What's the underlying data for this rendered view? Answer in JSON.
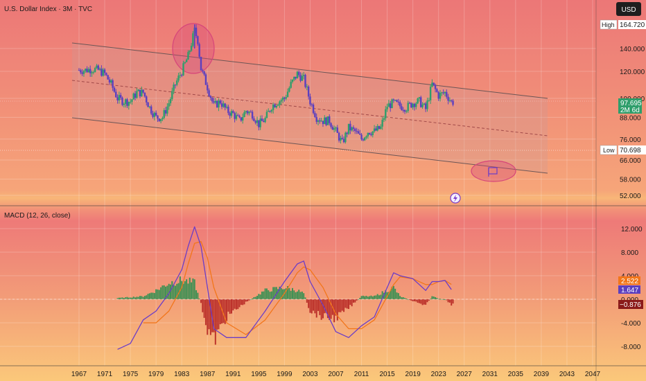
{
  "chart_title": "U.S. Dollar Index · 3M · TVC",
  "currency_button": "USD",
  "price_axis": {
    "ticks": [
      "140.000",
      "120.000",
      "100.000",
      "88.000",
      "76.000",
      "66.000",
      "58.000",
      "52.000"
    ],
    "high_label": "High",
    "high_value": "164.720",
    "low_label": "Low",
    "low_value": "70.698",
    "last_price": "97.695",
    "countdown": "2M 6d"
  },
  "macd": {
    "title": "MACD (12, 26, close)",
    "ticks": [
      "12.000",
      "8.000",
      "4.000",
      "0.000",
      "-4.000",
      "-8.000"
    ],
    "value_signal": "2.522",
    "value_macd": "1.647",
    "value_hist": "−0.876"
  },
  "time_axis": [
    "1967",
    "1971",
    "1975",
    "1979",
    "1983",
    "1987",
    "1991",
    "1995",
    "1999",
    "2003",
    "2007",
    "2011",
    "2015",
    "2019",
    "2023",
    "2027",
    "2031",
    "2035",
    "2039",
    "2043",
    "2047"
  ],
  "colors": {
    "up": "#2e9e6b",
    "down": "#5b3fbf",
    "macd_line": "#6a3cc8",
    "signal_line": "#f2761a",
    "hist_pos": "#1f8f4e",
    "hist_neg": "#b21d1d",
    "channel": "#6b5555",
    "ellipse": "#d6457a"
  },
  "chart_data": [
    {
      "type": "candlestick",
      "title": "U.S. Dollar Index · 3M · TVC",
      "y_scale": "log",
      "ylim": [
        48,
        170
      ],
      "xlim": [
        1964,
        2049
      ],
      "series": [
        {
          "points": [
            [
              1967,
              121
            ],
            [
              1968,
              121
            ],
            [
              1969,
              122
            ],
            [
              1970,
              121
            ],
            [
              1971,
              118
            ],
            [
              1972,
              110
            ],
            [
              1973,
              100
            ],
            [
              1974,
              98
            ],
            [
              1975,
              98
            ],
            [
              1976,
              104
            ],
            [
              1977,
              104
            ],
            [
              1978,
              94
            ],
            [
              1979,
              88
            ],
            [
              1980,
              88
            ],
            [
              1981,
              97
            ],
            [
              1982,
              110
            ],
            [
              1983,
              120
            ],
            [
              1984,
              133
            ],
            [
              1985,
              158
            ],
            [
              1985.5,
              148
            ],
            [
              1986,
              122
            ],
            [
              1987,
              108
            ],
            [
              1988,
              95
            ],
            [
              1989,
              98
            ],
            [
              1990,
              92
            ],
            [
              1991,
              90
            ],
            [
              1992,
              86
            ],
            [
              1993,
              92
            ],
            [
              1994,
              90
            ],
            [
              1995,
              84
            ],
            [
              1996,
              87
            ],
            [
              1997,
              95
            ],
            [
              1998,
              98
            ],
            [
              1999,
              100
            ],
            [
              2000,
              110
            ],
            [
              2001,
              118
            ],
            [
              2002,
              114
            ],
            [
              2003,
              98
            ],
            [
              2004,
              88
            ],
            [
              2005,
              86
            ],
            [
              2006,
              86
            ],
            [
              2007,
              80
            ],
            [
              2008,
              74
            ],
            [
              2009,
              82
            ],
            [
              2010,
              80
            ],
            [
              2011,
              76
            ],
            [
              2012,
              80
            ],
            [
              2013,
              80
            ],
            [
              2014,
              82
            ],
            [
              2015,
              95
            ],
            [
              2016,
              97
            ],
            [
              2017,
              95
            ],
            [
              2018,
              94
            ],
            [
              2019,
              97
            ],
            [
              2020,
              98
            ],
            [
              2021,
              93
            ],
            [
              2022,
              110
            ],
            [
              2023,
              102
            ],
            [
              2024,
              104
            ],
            [
              2025,
              97.695
            ]
          ]
        }
      ],
      "high": 164.72,
      "low": 70.698,
      "last": 97.695
    },
    {
      "type": "line",
      "title": "MACD (12, 26, close)",
      "ylim": [
        -10,
        14
      ],
      "series": [
        {
          "name": "MACD",
          "x": [
            1973,
            1975,
            1977,
            1979,
            1981,
            1983,
            1984,
            1985,
            1986,
            1987,
            1988,
            1990,
            1993,
            1996,
            1999,
            2001,
            2002,
            2003,
            2005,
            2007,
            2009,
            2011,
            2013,
            2015,
            2016,
            2017,
            2019,
            2021,
            2022,
            2023,
            2024,
            2025
          ],
          "values": [
            -8.5,
            -7.5,
            -3.5,
            -2,
            1,
            5,
            9,
            12.3,
            9,
            2,
            -5,
            -6.5,
            -6.5,
            -2,
            3,
            6,
            6.5,
            3,
            -1,
            -5.5,
            -6.5,
            -4.5,
            -3,
            2,
            4.5,
            4,
            3.5,
            1.5,
            3,
            3,
            3.2,
            1.647
          ]
        },
        {
          "name": "Signal",
          "x": [
            1977,
            1979,
            1981,
            1983,
            1984,
            1985,
            1986,
            1987,
            1988,
            1990,
            1993,
            1996,
            1999,
            2001,
            2002,
            2003,
            2005,
            2007,
            2009,
            2011,
            2013,
            2015,
            2016,
            2017,
            2019,
            2021,
            2022,
            2023,
            2024,
            2025
          ],
          "values": [
            -4,
            -4,
            -2,
            2,
            6,
            9.5,
            9.8,
            7,
            2,
            -4,
            -6,
            -3.5,
            1,
            4.5,
            5.5,
            5,
            2,
            -2.5,
            -5,
            -5,
            -3.5,
            0.5,
            2.5,
            3.8,
            3.5,
            2.5,
            2.5,
            3,
            3.2,
            2.522
          ]
        },
        {
          "name": "Histogram",
          "x": [
            1973,
            1977,
            1979,
            1981,
            1983,
            1984,
            1985,
            1986,
            1987,
            1988,
            1990,
            1993,
            1996,
            1999,
            2001,
            2002,
            2003,
            2005,
            2007,
            2009,
            2011,
            2013,
            2015,
            2016,
            2017,
            2019,
            2021,
            2022,
            2023,
            2024,
            2025
          ],
          "values": [
            0.2,
            0.5,
            1.5,
            2.8,
            3.2,
            3.0,
            2.8,
            -0.8,
            -5,
            -7,
            -3,
            -0.5,
            1.5,
            2,
            1.5,
            1,
            -2,
            -3,
            -3.2,
            -1.5,
            0.5,
            0.5,
            1.5,
            2,
            0.5,
            -0.3,
            -1,
            0.5,
            0.1,
            0.0,
            -0.876
          ]
        }
      ]
    }
  ]
}
